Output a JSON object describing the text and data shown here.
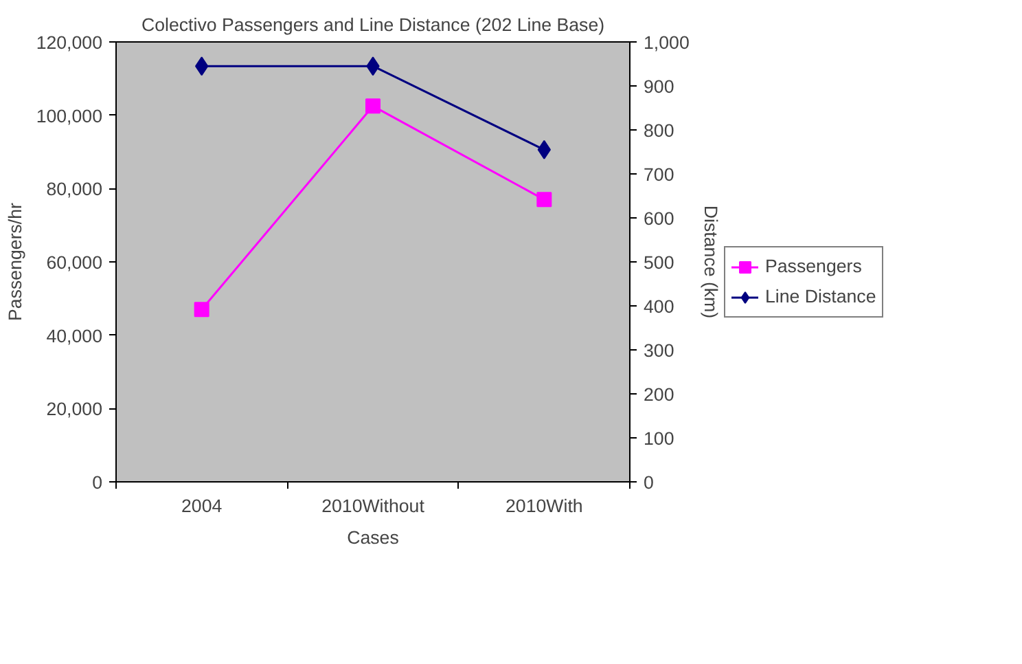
{
  "chart_data": {
    "type": "line",
    "title": "Colectivo Passengers and Line Distance (202 Line Base)",
    "xlabel": "Cases",
    "ylabel": "Passengers/hr",
    "y2label": "Distance (km)",
    "categories": [
      "2004",
      "2010Without",
      "2010With"
    ],
    "series": [
      {
        "name": "Passengers",
        "color": "#ff00ff",
        "marker": "square",
        "values": [
          47000,
          102500,
          77000
        ]
      },
      {
        "name": "Line Distance",
        "color": "#000080",
        "marker": "diamond",
        "axis": "y2",
        "values": [
          945,
          945,
          755
        ]
      }
    ],
    "ylim": [
      0,
      120000
    ],
    "yticks": [
      0,
      {
        "value": 20000,
        "label": "20,000"
      },
      {
        "value": 40000,
        "label": "40,000"
      },
      {
        "value": 60000,
        "label": "60,000"
      },
      {
        "value": 80000,
        "label": "80,000"
      },
      {
        "value": 100000,
        "label": "100,000"
      },
      {
        "value": 120000,
        "label": "120,000"
      }
    ],
    "y2lim": [
      0,
      1000
    ],
    "y2ticks": [
      0,
      100,
      200,
      300,
      400,
      500,
      600,
      700,
      800,
      900,
      {
        "value": 1000,
        "label": "1,000"
      }
    ],
    "grid": false,
    "legend": "right"
  }
}
